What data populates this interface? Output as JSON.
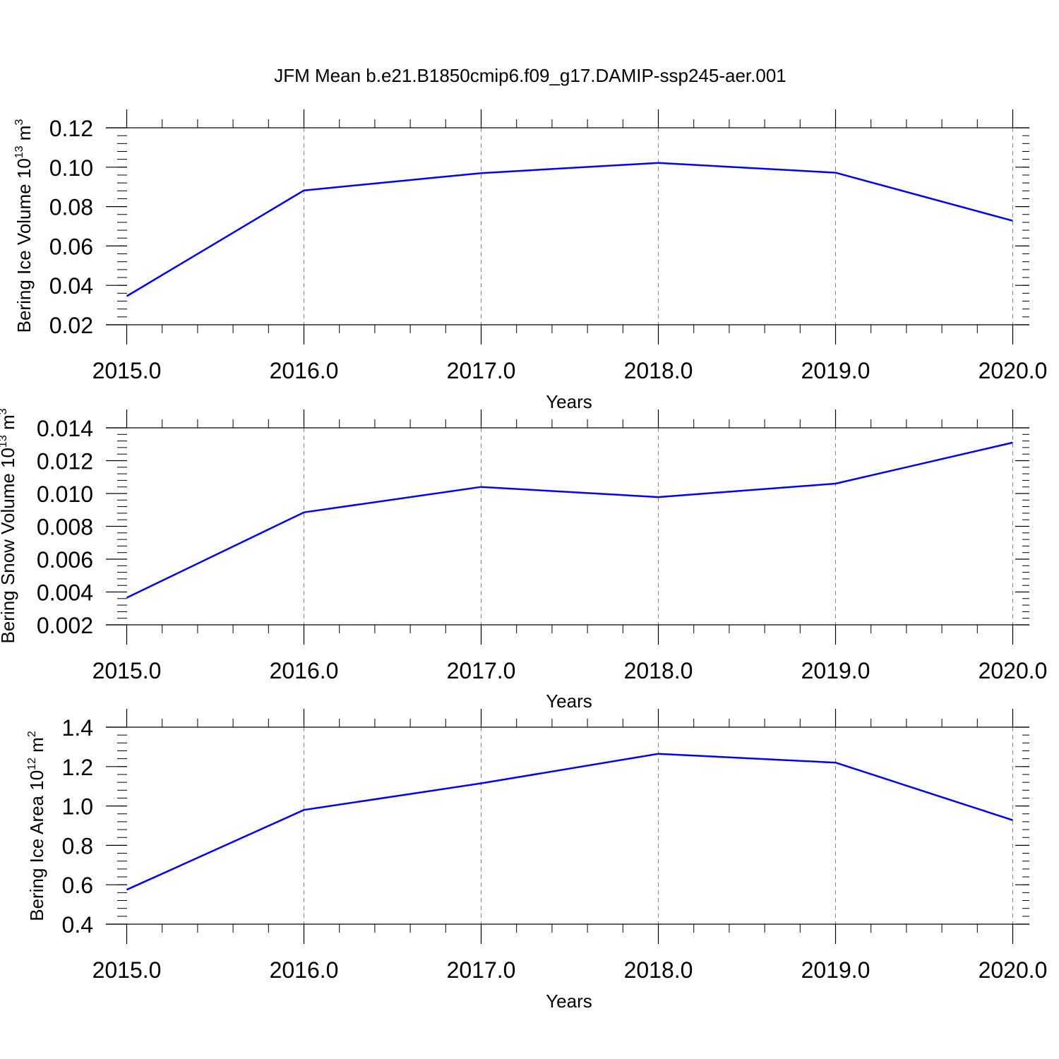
{
  "title": "JFM Mean b.e21.B1850cmip6.f09_g17.DAMIP-ssp245-aer.001",
  "colors": {
    "line": "#0000ff",
    "axis": "#000000",
    "grid": "#888888"
  },
  "chart_data": [
    {
      "type": "line",
      "xlabel": "Years",
      "ylabel": {
        "text": "Bering Ice Volume 10",
        "exp": "13",
        "unit": " m",
        "unit_exp": "3"
      },
      "x": [
        2015,
        2016,
        2017,
        2018,
        2019,
        2020
      ],
      "xlim": [
        2015,
        2020.1
      ],
      "xticks": [
        2015,
        2016,
        2017,
        2018,
        2019,
        2020
      ],
      "xtick_labels": [
        "2015.0",
        "2016.0",
        "2017.0",
        "2018.0",
        "2019.0",
        "2020.0"
      ],
      "ylim": [
        0.02,
        0.12
      ],
      "yticks": [
        0.02,
        0.04,
        0.06,
        0.08,
        0.1,
        0.12
      ],
      "ytick_labels": [
        "0.02",
        "0.04",
        "0.06",
        "0.08",
        "0.10",
        "0.12"
      ],
      "y_minor_step": 0.004,
      "series": [
        {
          "values": [
            0.0345,
            0.0882,
            0.097,
            0.1022,
            0.0972,
            0.0728
          ]
        }
      ],
      "grid": "vertical dashed at major x ticks"
    },
    {
      "type": "line",
      "xlabel": "Years",
      "ylabel": {
        "text": "Bering Snow Volume 10",
        "exp": "13",
        "unit": " m",
        "unit_exp": "3"
      },
      "x": [
        2015,
        2016,
        2017,
        2018,
        2019,
        2020
      ],
      "xlim": [
        2015,
        2020.1
      ],
      "xticks": [
        2015,
        2016,
        2017,
        2018,
        2019,
        2020
      ],
      "xtick_labels": [
        "2015.0",
        "2016.0",
        "2017.0",
        "2018.0",
        "2019.0",
        "2020.0"
      ],
      "ylim": [
        0.002,
        0.014
      ],
      "yticks": [
        0.002,
        0.004,
        0.006,
        0.008,
        0.01,
        0.012,
        0.014
      ],
      "ytick_labels": [
        "0.002",
        "0.004",
        "0.006",
        "0.008",
        "0.010",
        "0.012",
        "0.014"
      ],
      "y_minor_step": 0.0004,
      "series": [
        {
          "values": [
            0.00365,
            0.00885,
            0.0104,
            0.00978,
            0.0106,
            0.0131
          ]
        }
      ],
      "grid": "vertical dashed at major x ticks"
    },
    {
      "type": "line",
      "xlabel": "Years",
      "ylabel": {
        "text": "Bering Ice Area 10",
        "exp": "12",
        "unit": " m",
        "unit_exp": "2"
      },
      "x": [
        2015,
        2016,
        2017,
        2018,
        2019,
        2020
      ],
      "xlim": [
        2015,
        2020.1
      ],
      "xticks": [
        2015,
        2016,
        2017,
        2018,
        2019,
        2020
      ],
      "xtick_labels": [
        "2015.0",
        "2016.0",
        "2017.0",
        "2018.0",
        "2019.0",
        "2020.0"
      ],
      "ylim": [
        0.4,
        1.4
      ],
      "yticks": [
        0.4,
        0.6,
        0.8,
        1.0,
        1.2,
        1.4
      ],
      "ytick_labels": [
        "0.4",
        "0.6",
        "0.8",
        "1.0",
        "1.2",
        "1.4"
      ],
      "y_minor_step": 0.04,
      "series": [
        {
          "values": [
            0.575,
            0.98,
            1.115,
            1.265,
            1.22,
            0.928
          ]
        }
      ],
      "grid": "vertical dashed at major x ticks"
    }
  ]
}
